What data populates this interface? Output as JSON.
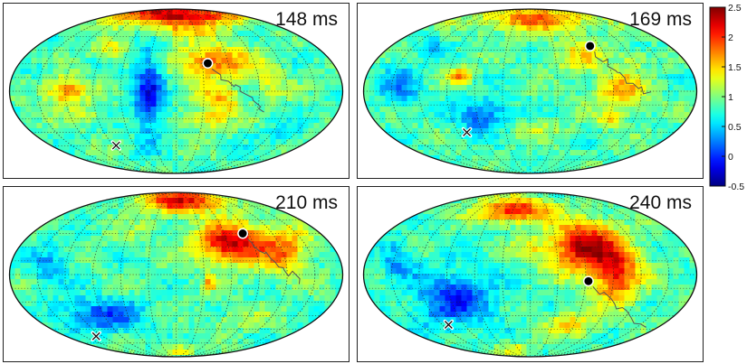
{
  "chart_data": {
    "type": "heatmap",
    "projection": "Mollweide",
    "title": "",
    "colorbar": {
      "colormap": "jet",
      "min": -0.5,
      "max": 2.5,
      "ticks": [
        2.5,
        2,
        1.5,
        1,
        0.5,
        0,
        -0.5
      ],
      "tick_labels": [
        "2.5",
        "2",
        "1.5",
        "1",
        "0.5",
        "0",
        "-0.5"
      ]
    },
    "panels": [
      {
        "label": "148 ms",
        "time_ms": 148,
        "circle_marker": [
          0.19,
          0.34
        ],
        "x_marker": [
          -0.36,
          -0.66
        ],
        "blobs": [
          [
            0.0,
            0.95,
            0.45,
            0.12,
            1.3
          ],
          [
            0.02,
            0.78,
            0.3,
            0.15,
            0.6
          ],
          [
            0.22,
            0.35,
            0.24,
            0.2,
            1.0
          ],
          [
            0.27,
            -0.1,
            0.12,
            0.18,
            0.75
          ],
          [
            0.18,
            -0.35,
            0.14,
            0.12,
            0.55
          ],
          [
            -0.66,
            0.0,
            0.13,
            0.18,
            0.9
          ],
          [
            -0.4,
            0.5,
            0.1,
            0.12,
            0.5
          ],
          [
            -0.16,
            0.0,
            0.09,
            0.55,
            -0.9
          ],
          [
            0.56,
            0.1,
            0.1,
            0.2,
            0.4
          ],
          [
            -0.55,
            -0.3,
            0.1,
            0.08,
            0.4
          ],
          [
            0.6,
            -0.5,
            0.12,
            0.1,
            -0.3
          ],
          [
            -0.8,
            0.25,
            0.1,
            0.1,
            -0.2
          ]
        ]
      },
      {
        "label": "169 ms",
        "time_ms": 169,
        "circle_marker": [
          0.36,
          0.55
        ],
        "x_marker": [
          -0.38,
          -0.5
        ],
        "blobs": [
          [
            0.05,
            0.88,
            0.38,
            0.16,
            0.9
          ],
          [
            0.3,
            0.42,
            0.15,
            0.2,
            0.55
          ],
          [
            0.55,
            0.0,
            0.15,
            0.25,
            0.75
          ],
          [
            0.48,
            -0.35,
            0.08,
            0.1,
            0.5
          ],
          [
            -0.42,
            0.2,
            0.07,
            0.1,
            0.9
          ],
          [
            -0.28,
            -0.3,
            0.15,
            0.2,
            -0.75
          ],
          [
            -0.78,
            0.05,
            0.12,
            0.25,
            -0.55
          ],
          [
            0.02,
            -0.45,
            0.2,
            0.12,
            0.3
          ],
          [
            0.62,
            0.4,
            0.08,
            0.1,
            0.4
          ],
          [
            -0.6,
            0.55,
            0.1,
            0.12,
            -0.3
          ]
        ]
      },
      {
        "label": "210 ms",
        "time_ms": 210,
        "circle_marker": [
          0.4,
          0.5
        ],
        "x_marker": [
          -0.48,
          -0.75
        ],
        "blobs": [
          [
            0.05,
            0.9,
            0.25,
            0.15,
            1.3
          ],
          [
            0.33,
            0.38,
            0.2,
            0.25,
            1.45
          ],
          [
            0.65,
            0.3,
            0.15,
            0.3,
            0.85
          ],
          [
            0.2,
            -0.1,
            0.03,
            0.1,
            0.95
          ],
          [
            -0.45,
            -0.5,
            0.25,
            0.2,
            -0.75
          ],
          [
            -0.75,
            0.1,
            0.12,
            0.25,
            -0.45
          ],
          [
            0.38,
            -0.55,
            0.2,
            0.12,
            0.25
          ],
          [
            -0.2,
            0.55,
            0.15,
            0.15,
            0.2
          ],
          [
            0.0,
            -0.92,
            0.1,
            0.08,
            0.6
          ]
        ]
      },
      {
        "label": "240 ms",
        "time_ms": 240,
        "circle_marker": [
          0.35,
          -0.08
        ],
        "x_marker": [
          -0.49,
          -0.61
        ],
        "blobs": [
          [
            -0.1,
            0.78,
            0.2,
            0.15,
            1.3
          ],
          [
            0.32,
            0.35,
            0.2,
            0.3,
            1.5
          ],
          [
            0.52,
            0.0,
            0.15,
            0.35,
            1.15
          ],
          [
            0.25,
            -0.6,
            0.15,
            0.15,
            0.6
          ],
          [
            -0.45,
            -0.3,
            0.25,
            0.35,
            -0.8
          ],
          [
            -0.8,
            0.2,
            0.1,
            0.25,
            -0.5
          ],
          [
            0.0,
            0.3,
            0.1,
            0.15,
            0.4
          ],
          [
            -0.1,
            -0.9,
            0.1,
            0.08,
            0.5
          ]
        ]
      }
    ],
    "legend": {
      "circle": "black filled circle marker",
      "x": "white cross marker"
    }
  }
}
